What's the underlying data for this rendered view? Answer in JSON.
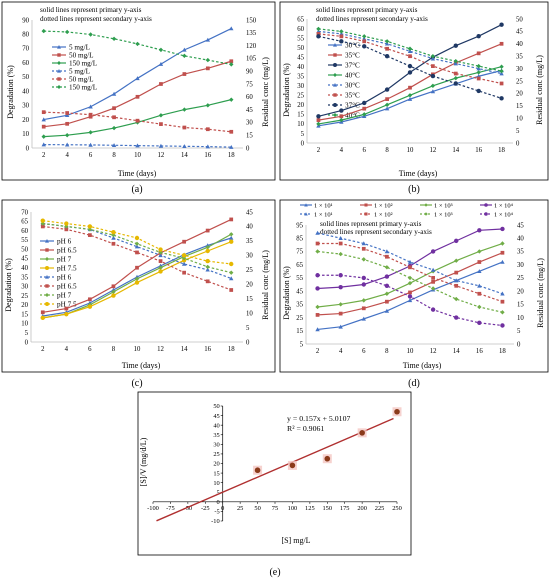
{
  "chart_data": [
    {
      "id": "a",
      "type": "line",
      "panel_label": "(a)",
      "notes": [
        "solid lines represent primary y-axis",
        "dotted lines represent secondary y-axis"
      ],
      "xlabel": "Time (days)",
      "ylabel": "Degradation (%)",
      "y2label": "Residual conc (mg/L)",
      "x_ticks": [
        2,
        4,
        6,
        8,
        10,
        12,
        14,
        16,
        18
      ],
      "y_ticks": [
        0,
        10,
        20,
        30,
        40,
        50,
        60,
        70,
        80,
        90
      ],
      "y2_ticks": [
        0,
        15,
        30,
        45,
        60,
        75,
        90,
        105,
        120,
        135,
        150
      ],
      "xlim": [
        1,
        19
      ],
      "ylim": [
        0,
        90
      ],
      "y2lim": [
        0,
        150
      ],
      "x": [
        2,
        4,
        6,
        8,
        10,
        12,
        14,
        16,
        18
      ],
      "series": [
        {
          "name": "5 mg/L",
          "axis": "primary",
          "style": "solid",
          "marker": "triangle",
          "color": "#4472c4",
          "values": [
            20,
            23,
            29,
            38,
            49,
            59,
            69,
            76,
            84
          ]
        },
        {
          "name": "50 mg/L",
          "axis": "primary",
          "style": "solid",
          "marker": "square",
          "color": "#c0504d",
          "values": [
            15,
            17,
            22,
            28,
            36,
            45,
            52,
            56,
            61
          ]
        },
        {
          "name": "150 mg/L",
          "axis": "primary",
          "style": "solid",
          "marker": "diamond",
          "color": "#2e9e4f",
          "values": [
            8,
            9,
            11,
            14,
            18,
            23,
            27,
            30,
            34
          ]
        },
        {
          "name": "5 mg/L",
          "axis": "secondary",
          "style": "dotted",
          "marker": "triangle",
          "color": "#4472c4",
          "values": [
            4,
            3.8,
            3.6,
            3.2,
            2.8,
            2.4,
            2,
            1.6,
            1
          ]
        },
        {
          "name": "50 mg/L",
          "axis": "secondary",
          "style": "dotted",
          "marker": "square",
          "color": "#c0504d",
          "values": [
            42,
            41,
            39,
            36,
            32,
            28,
            24,
            22,
            19
          ]
        },
        {
          "name": "150 mg/L",
          "axis": "secondary",
          "style": "dotted",
          "marker": "diamond",
          "color": "#2e9e4f",
          "values": [
            137,
            136,
            133,
            128,
            122,
            115,
            108,
            103,
            98
          ]
        }
      ]
    },
    {
      "id": "b",
      "type": "line",
      "panel_label": "(b)",
      "notes": [
        "solid lines represent primary y-axis",
        "dotted lines represent secondary y-axis"
      ],
      "xlabel": "Time (days)",
      "ylabel": "Degradation (%)",
      "y2label": "Residual conc (mg/L)",
      "x_ticks": [
        2,
        4,
        6,
        8,
        10,
        12,
        14,
        16,
        18
      ],
      "y_ticks": [
        0,
        5,
        10,
        15,
        20,
        25,
        30,
        35,
        40,
        45,
        50,
        55,
        60,
        65
      ],
      "y2_ticks": [
        0,
        5,
        10,
        15,
        20,
        25,
        30,
        35,
        40,
        45,
        50
      ],
      "xlim": [
        1,
        19
      ],
      "ylim": [
        0,
        65
      ],
      "y2lim": [
        0,
        50
      ],
      "x": [
        2,
        4,
        6,
        8,
        10,
        12,
        14,
        16,
        18
      ],
      "series": [
        {
          "name": "30°C",
          "axis": "primary",
          "style": "solid",
          "marker": "triangle",
          "color": "#4472c4",
          "values": [
            9,
            11,
            14,
            18,
            23,
            27,
            31,
            35,
            38
          ]
        },
        {
          "name": "35°C",
          "axis": "primary",
          "style": "solid",
          "marker": "square",
          "color": "#c0504d",
          "values": [
            12,
            14,
            18,
            23,
            29,
            36,
            42,
            47,
            52
          ]
        },
        {
          "name": "37°C",
          "axis": "primary",
          "style": "solid",
          "marker": "circle",
          "color": "#1f3864",
          "values": [
            14,
            17,
            21,
            28,
            37,
            45,
            51,
            56,
            62
          ]
        },
        {
          "name": "40°C",
          "axis": "primary",
          "style": "solid",
          "marker": "diamond",
          "color": "#2e9e4f",
          "values": [
            10,
            12,
            15,
            20,
            25,
            30,
            34,
            37,
            40
          ]
        },
        {
          "name": "30°C",
          "axis": "secondary",
          "style": "dotted",
          "marker": "triangle",
          "color": "#4472c4",
          "values": [
            45,
            44,
            42,
            40,
            37,
            34,
            32,
            30,
            28
          ]
        },
        {
          "name": "35°C",
          "axis": "secondary",
          "style": "dotted",
          "marker": "square",
          "color": "#c0504d",
          "values": [
            44,
            43,
            41,
            38,
            35,
            31,
            28,
            26,
            24
          ]
        },
        {
          "name": "37°C",
          "axis": "secondary",
          "style": "dotted",
          "marker": "circle",
          "color": "#1f3864",
          "values": [
            43,
            41,
            39,
            35,
            31,
            27,
            24,
            21,
            18
          ]
        },
        {
          "name": "40°C",
          "axis": "secondary",
          "style": "dotted",
          "marker": "diamond",
          "color": "#2e9e4f",
          "values": [
            46,
            45,
            43,
            41,
            38,
            35,
            33,
            31,
            29
          ]
        }
      ]
    },
    {
      "id": "c",
      "type": "line",
      "panel_label": "(c)",
      "notes": [],
      "xlabel": "Time (days)",
      "ylabel": "Degradation (%)",
      "y2label": "Residual conc (mg/L)",
      "x_ticks": [
        2,
        4,
        6,
        8,
        10,
        12,
        14,
        16,
        18
      ],
      "y_ticks": [
        0,
        5,
        10,
        15,
        20,
        25,
        30,
        35,
        40,
        45,
        50,
        55,
        60,
        65,
        70
      ],
      "y2_ticks": [
        0,
        5,
        10,
        15,
        20,
        25,
        30,
        35,
        40,
        45
      ],
      "xlim": [
        1,
        19
      ],
      "ylim": [
        0,
        70
      ],
      "y2lim": [
        0,
        45
      ],
      "x": [
        2,
        4,
        6,
        8,
        10,
        12,
        14,
        16,
        18
      ],
      "series": [
        {
          "name": "pH 6",
          "axis": "primary",
          "style": "solid",
          "marker": "triangle",
          "color": "#4472c4",
          "values": [
            14,
            16,
            21,
            28,
            35,
            41,
            47,
            52,
            56
          ]
        },
        {
          "name": "pH 6.5",
          "axis": "primary",
          "style": "solid",
          "marker": "square",
          "color": "#c0504d",
          "values": [
            16,
            18,
            23,
            30,
            40,
            48,
            54,
            60,
            66
          ]
        },
        {
          "name": "pH 7",
          "axis": "primary",
          "style": "solid",
          "marker": "diamond",
          "color": "#70ad47",
          "values": [
            13,
            15,
            20,
            27,
            34,
            40,
            46,
            51,
            58
          ]
        },
        {
          "name": "pH 7.5",
          "axis": "primary",
          "style": "solid",
          "marker": "circle",
          "color": "#e6b800",
          "values": [
            13,
            15,
            19,
            25,
            32,
            38,
            44,
            49,
            54
          ]
        },
        {
          "name": "pH 6",
          "axis": "secondary",
          "style": "dotted",
          "marker": "triangle",
          "color": "#4472c4",
          "values": [
            41,
            40,
            39,
            36,
            33,
            30,
            27,
            25,
            22
          ]
        },
        {
          "name": "pH 6.5",
          "axis": "secondary",
          "style": "dotted",
          "marker": "square",
          "color": "#c0504d",
          "values": [
            40,
            39,
            37,
            34,
            31,
            28,
            24,
            21,
            18
          ]
        },
        {
          "name": "pH 7",
          "axis": "secondary",
          "style": "dotted",
          "marker": "diamond",
          "color": "#70ad47",
          "values": [
            41,
            40,
            39,
            37,
            34,
            31,
            29,
            26,
            24
          ]
        },
        {
          "name": "pH 7.5",
          "axis": "secondary",
          "style": "dotted",
          "marker": "circle",
          "color": "#e6b800",
          "values": [
            42,
            41,
            40,
            38,
            36,
            32,
            30,
            28,
            27
          ]
        }
      ]
    },
    {
      "id": "d",
      "type": "line",
      "panel_label": "(d)",
      "notes": [
        "solid lines represent primary y-axis",
        "dotted lines represent secondary y-axis"
      ],
      "xlabel": "Time (days)",
      "ylabel": "Degradation (%)",
      "y2label": "Residual conc (mg/L)",
      "x_ticks": [
        2,
        4,
        6,
        8,
        10,
        12,
        14,
        16,
        18
      ],
      "y_ticks": [
        5,
        15,
        25,
        35,
        45,
        55,
        65,
        75,
        85,
        95
      ],
      "y2_ticks": [
        0,
        5,
        10,
        15,
        20,
        25,
        30,
        35,
        40,
        45
      ],
      "xlim": [
        1,
        19
      ],
      "ylim": [
        5,
        95
      ],
      "y2lim": [
        0,
        45
      ],
      "x": [
        2,
        4,
        6,
        8,
        10,
        12,
        14,
        16,
        18
      ],
      "series": [
        {
          "name": "1 × 10¹",
          "axis": "primary",
          "style": "solid",
          "marker": "triangle",
          "color": "#4472c4",
          "values": [
            16,
            18,
            24,
            30,
            38,
            46,
            53,
            60,
            67
          ]
        },
        {
          "name": "1 × 10²",
          "axis": "primary",
          "style": "solid",
          "marker": "square",
          "color": "#c0504d",
          "values": [
            27,
            28,
            32,
            37,
            44,
            52,
            59,
            67,
            74
          ]
        },
        {
          "name": "1 × 10³",
          "axis": "primary",
          "style": "solid",
          "marker": "diamond",
          "color": "#70ad47",
          "values": [
            33,
            35,
            38,
            43,
            51,
            60,
            68,
            75,
            81
          ]
        },
        {
          "name": "1 × 10⁴",
          "axis": "primary",
          "style": "solid",
          "marker": "circle",
          "color": "#7030a0",
          "values": [
            47,
            48,
            50,
            56,
            64,
            75,
            83,
            91,
            92
          ]
        },
        {
          "name": "1 × 10¹",
          "axis": "secondary",
          "style": "dotted",
          "marker": "triangle",
          "color": "#4472c4",
          "values": [
            42,
            40,
            38,
            35,
            31,
            28,
            24,
            22,
            19
          ]
        },
        {
          "name": "1 × 10²",
          "axis": "secondary",
          "style": "dotted",
          "marker": "square",
          "color": "#c0504d",
          "values": [
            38,
            38,
            36,
            33,
            29,
            25,
            22,
            19,
            16
          ]
        },
        {
          "name": "1 × 10³",
          "axis": "secondary",
          "style": "dotted",
          "marker": "diamond",
          "color": "#70ad47",
          "values": [
            35,
            34,
            32,
            29,
            25,
            21,
            17,
            14,
            12
          ]
        },
        {
          "name": "1 × 10⁴",
          "axis": "secondary",
          "style": "dotted",
          "marker": "circle",
          "color": "#7030a0",
          "values": [
            26,
            26,
            25,
            22,
            18,
            13,
            10,
            8,
            7
          ]
        }
      ]
    },
    {
      "id": "e",
      "type": "scatter",
      "panel_label": "(e)",
      "xlabel": "[S] mg/L",
      "ylabel": "[S]/V (mg/d/L)",
      "x_ticks": [
        -100,
        -75,
        -50,
        -25,
        0,
        25,
        50,
        75,
        100,
        125,
        150,
        175,
        200,
        225,
        250
      ],
      "y_ticks": [
        -10,
        -5,
        0,
        5,
        10,
        15,
        20,
        25,
        30,
        35,
        40,
        45,
        50
      ],
      "xlim": [
        -100,
        250
      ],
      "ylim": [
        -10,
        50
      ],
      "equation": "y = 0.157x + 5.0107",
      "r_squared": "R² = 0.9061",
      "slope": 0.157,
      "intercept": 5.0107,
      "trendline_x": [
        -95,
        245
      ],
      "points_x": [
        50,
        100,
        150,
        200,
        250
      ],
      "points_y": [
        16.5,
        19,
        22.5,
        36,
        47
      ],
      "marker_color": "#8b3a1a",
      "line_color": "#b03030"
    }
  ]
}
